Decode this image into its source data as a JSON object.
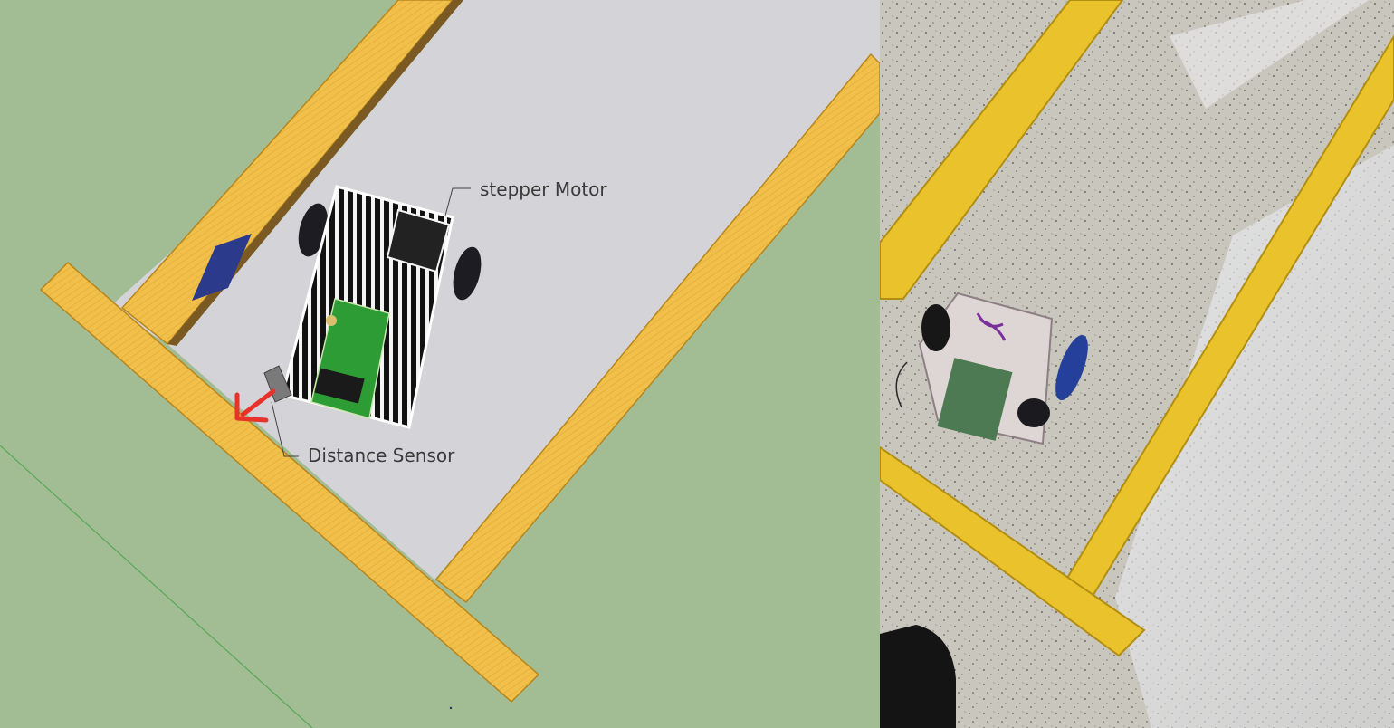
{
  "model_view": {
    "labels": {
      "stepper_motor": "stepper Motor",
      "distance_sensor": "Distance Sensor"
    },
    "colors": {
      "ground": "#a2bc94",
      "track_floor": "#d4d4d8",
      "rail": "#f0c04a",
      "rail_edge": "#b8861c",
      "pcb": "#2e9c35",
      "arrow": "#e8332a",
      "marker": "#2c3a8c"
    }
  },
  "photo_view": {
    "colors": {
      "floor": "#c9c6be",
      "rail": "#e9c22c",
      "glare": "#f2f4f8"
    }
  }
}
